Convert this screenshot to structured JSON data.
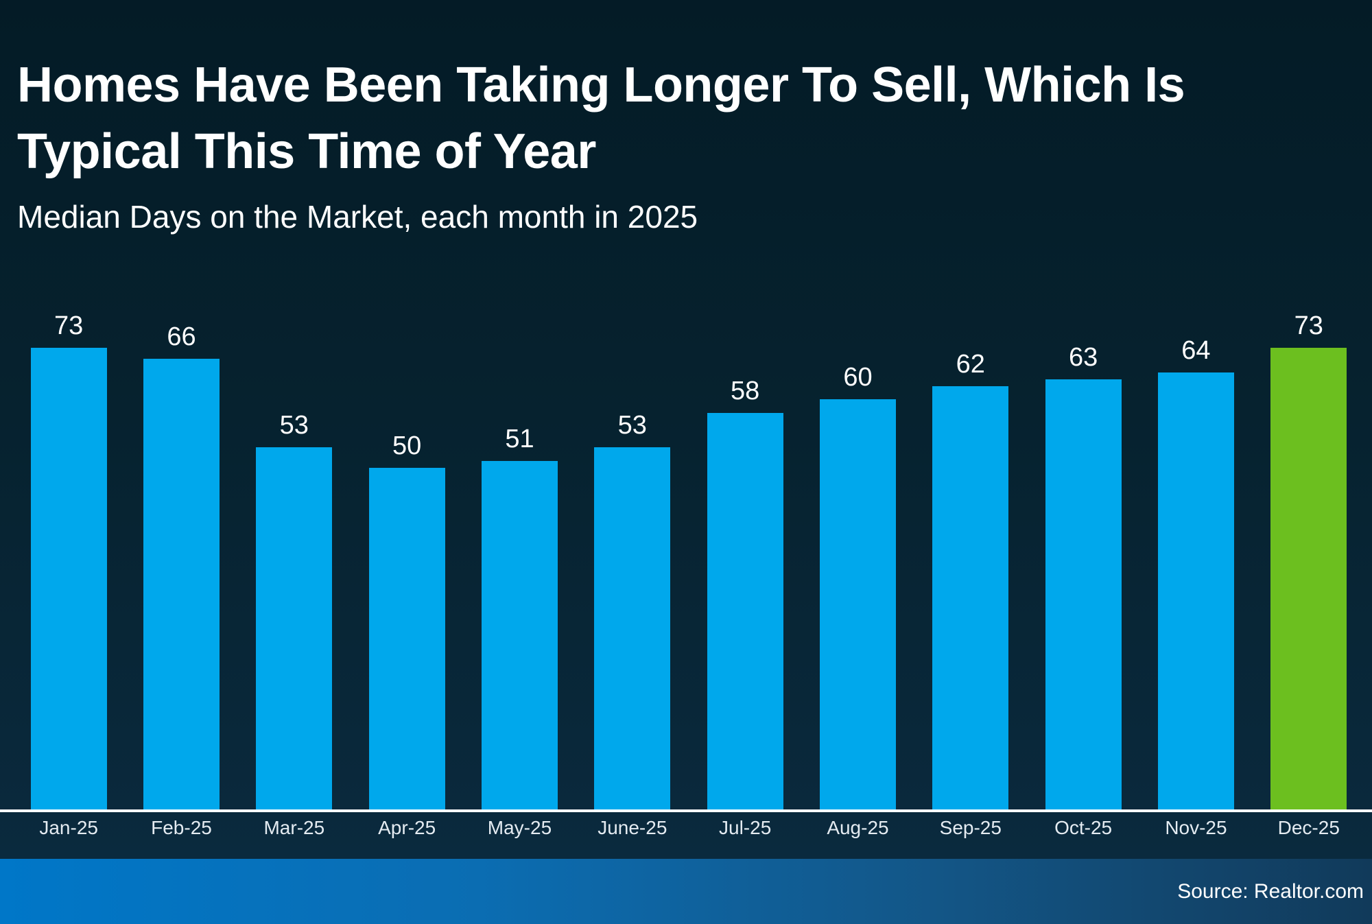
{
  "chart_data": {
    "type": "bar",
    "title": "Homes Have Been Taking Longer To Sell, Which Is Typical This Time of Year",
    "title_lines": [
      "Homes Have Been Taking Longer To Sell, Which Is",
      "Typical This Time of Year"
    ],
    "subtitle": "Median Days on the Market, each month in 2025",
    "categories": [
      "Jan-25",
      "Feb-25",
      "Mar-25",
      "Apr-25",
      "May-25",
      "June-25",
      "Jul-25",
      "Aug-25",
      "Sep-25",
      "Oct-25",
      "Nov-25",
      "Dec-25"
    ],
    "values": [
      73,
      66,
      53,
      50,
      51,
      53,
      58,
      60,
      62,
      63,
      64,
      73
    ],
    "ylabel": "",
    "xlabel": "",
    "ylim": [
      0,
      73
    ],
    "grid": "off",
    "legend": "none",
    "value_labels_shown": true,
    "highlight_index": 11,
    "bar_color_default": "#00A8EC",
    "bar_color_highlight": "#6CBF1F"
  },
  "footer": {
    "source_label": "Source: Realtor.com"
  },
  "colors": {
    "background_top": "#041B26",
    "background_mid": "#06222F",
    "background_bottom": "#0B2B40",
    "title_text": "#FFFFFF",
    "subtitle_text": "#FFFFFF",
    "value_label_text": "#FFFFFF",
    "category_label_text": "#E4EBF1",
    "axis_line": "#FFFFFF",
    "footer_gradient_left": "#0077C8",
    "footer_gradient_right": "#113A5A",
    "source_text": "#FFFFFF"
  }
}
